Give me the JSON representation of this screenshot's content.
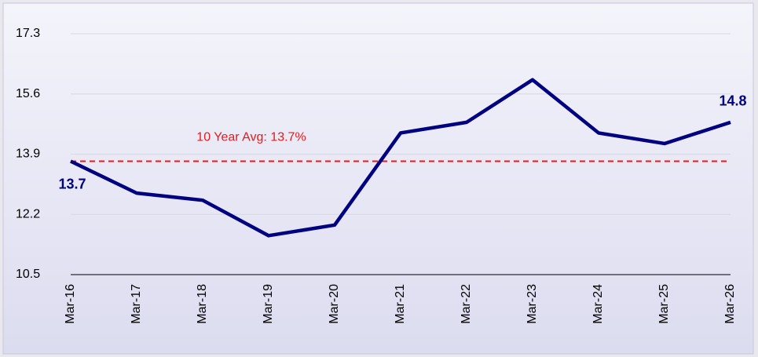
{
  "chart_data": {
    "type": "line",
    "categories": [
      "Mar-16",
      "Mar-17",
      "Mar-18",
      "Mar-19",
      "Mar-20",
      "Mar-21",
      "Mar-22",
      "Mar-23",
      "Mar-24",
      "Mar-25",
      "Mar-26"
    ],
    "series": [
      {
        "color": "#000080",
        "values": [
          13.7,
          12.8,
          12.6,
          11.6,
          11.9,
          14.5,
          14.8,
          16.0,
          14.5,
          14.2,
          14.8
        ]
      }
    ],
    "value_labels": [
      "13.7",
      null,
      null,
      null,
      null,
      null,
      null,
      null,
      null,
      null,
      "14.8"
    ],
    "ylim": [
      10.5,
      17.3
    ],
    "yticks": [
      10.5,
      12.2,
      13.9,
      15.6,
      17.3
    ],
    "grid": true,
    "reference": {
      "label": "10 Year Avg: 13.7%",
      "value": 13.7,
      "color": "#e41a1c"
    }
  }
}
